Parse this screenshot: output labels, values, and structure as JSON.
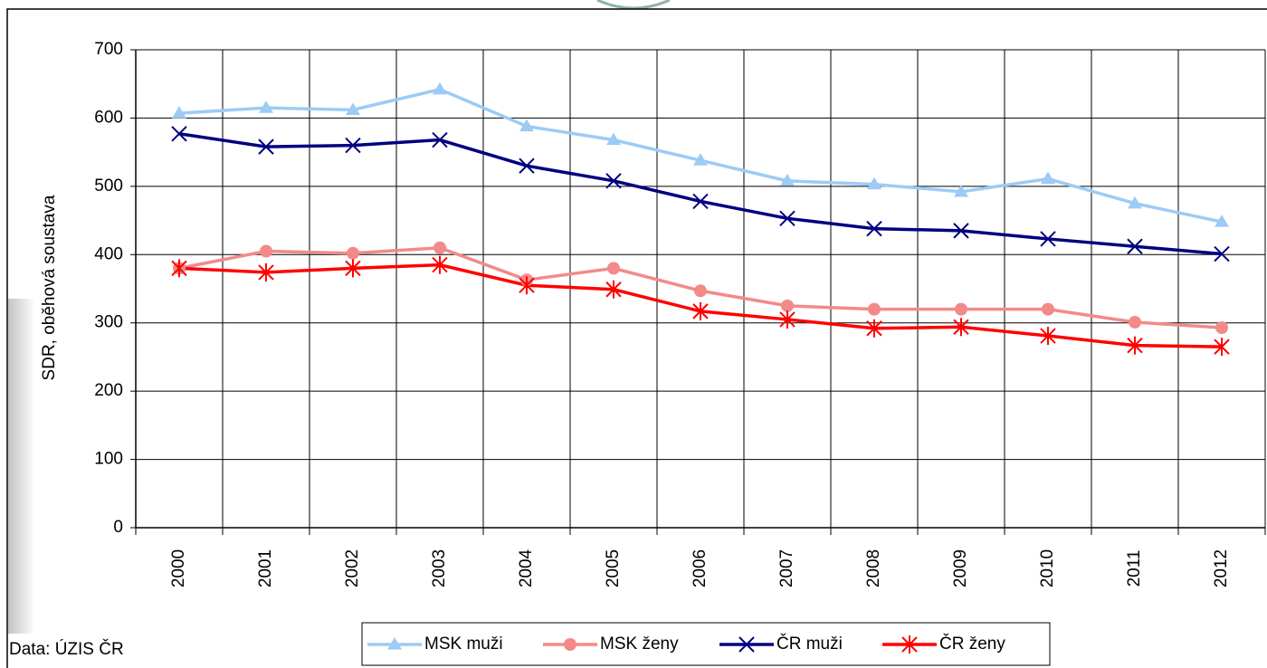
{
  "chart_data": {
    "type": "line",
    "y_label": "SDR, oběhová soustava",
    "source": "Data: ÚZIS ČR",
    "categories": [
      "2000",
      "2001",
      "2002",
      "2003",
      "2004",
      "2005",
      "2006",
      "2007",
      "2008",
      "2009",
      "2010",
      "2011",
      "2012"
    ],
    "series": [
      {
        "name": "MSK muži",
        "color": "#9ccbf5",
        "marker": "triangle",
        "values": [
          607,
          615,
          612,
          642,
          588,
          568,
          538,
          508,
          503,
          492,
          511,
          475,
          448
        ]
      },
      {
        "name": "MSK ženy",
        "color": "#f28a8a",
        "marker": "circle",
        "values": [
          380,
          405,
          402,
          410,
          363,
          380,
          347,
          325,
          320,
          320,
          320,
          301,
          293
        ]
      },
      {
        "name": "ČR muži",
        "color": "#000080",
        "marker": "x",
        "values": [
          577,
          558,
          560,
          568,
          530,
          508,
          478,
          453,
          438,
          435,
          423,
          412,
          401
        ]
      },
      {
        "name": "ČR ženy",
        "color": "#ff0000",
        "marker": "asterisk",
        "values": [
          380,
          374,
          380,
          385,
          355,
          349,
          317,
          305,
          292,
          294,
          281,
          267,
          265
        ]
      }
    ],
    "ylim": [
      0,
      700
    ],
    "yticks": [
      0,
      100,
      200,
      300,
      400,
      500,
      600,
      700
    ],
    "grid": true
  }
}
